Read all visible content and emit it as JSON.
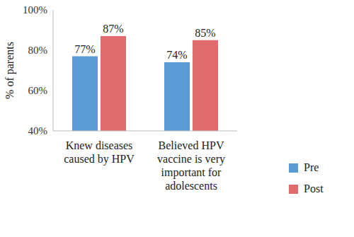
{
  "chart_data": {
    "type": "bar",
    "categories": [
      "Knew diseases caused by HPV",
      "Believed HPV vaccine is very important for adolescents"
    ],
    "series": [
      {
        "name": "Pre",
        "color": "#5b9bd5",
        "values": [
          77,
          74
        ],
        "value_labels": [
          "77%",
          "74%"
        ]
      },
      {
        "name": "Post",
        "color": "#e06b6b",
        "values": [
          87,
          85
        ],
        "value_labels": [
          "87%",
          "85%"
        ]
      }
    ],
    "ylabel": "% of parents",
    "ylim": [
      40,
      100
    ],
    "yticks": [
      {
        "value": 40,
        "label": "40%"
      },
      {
        "value": 60,
        "label": "60%"
      },
      {
        "value": 80,
        "label": "80%"
      },
      {
        "value": 100,
        "label": "100%"
      }
    ],
    "grid": false,
    "legend": "right",
    "data_labels": true
  }
}
